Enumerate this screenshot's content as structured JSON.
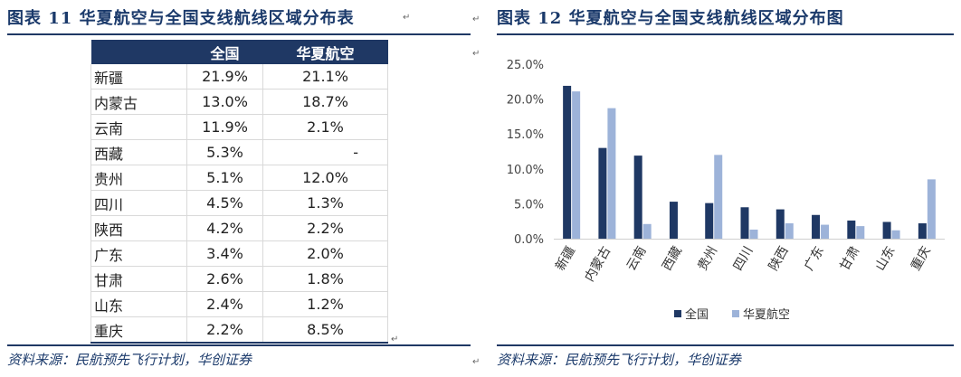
{
  "left": {
    "title": "图表 11   华夏航空与全国支线航线区域分布表",
    "source": "资料来源：民航预先飞行计划，华创证券"
  },
  "right": {
    "title": "图表 12   华夏航空与全国支线航线区域分布图",
    "source": "资料来源：民航预先飞行计划，华创证券"
  },
  "table": {
    "headers": [
      "",
      "全国",
      "华夏航空"
    ],
    "rows": [
      [
        "新疆",
        "21.9%",
        "21.1%"
      ],
      [
        "内蒙古",
        "13.0%",
        "18.7%"
      ],
      [
        "云南",
        "11.9%",
        "2.1%"
      ],
      [
        "西藏",
        "5.3%",
        "-"
      ],
      [
        "贵州",
        "5.1%",
        "12.0%"
      ],
      [
        "四川",
        "4.5%",
        "1.3%"
      ],
      [
        "陕西",
        "4.2%",
        "2.2%"
      ],
      [
        "广东",
        "3.4%",
        "2.0%"
      ],
      [
        "甘肃",
        "2.6%",
        "1.8%"
      ],
      [
        "山东",
        "2.4%",
        "1.2%"
      ],
      [
        "重庆",
        "2.2%",
        "8.5%"
      ]
    ]
  },
  "colors": {
    "national": "#1f3864",
    "huaxia": "#9db3d9",
    "accent": "#1f3864"
  },
  "chart_data": {
    "type": "bar",
    "categories": [
      "新疆",
      "内蒙古",
      "云南",
      "西藏",
      "贵州",
      "四川",
      "陕西",
      "广东",
      "甘肃",
      "山东",
      "重庆"
    ],
    "series": [
      {
        "name": "全国",
        "values": [
          21.9,
          13.0,
          11.9,
          5.3,
          5.1,
          4.5,
          4.2,
          3.4,
          2.6,
          2.4,
          2.2
        ]
      },
      {
        "name": "华夏航空",
        "values": [
          21.1,
          18.7,
          2.1,
          0,
          12.0,
          1.3,
          2.2,
          2.0,
          1.8,
          1.2,
          8.5
        ]
      }
    ],
    "yticks": [
      "0.0%",
      "5.0%",
      "10.0%",
      "15.0%",
      "20.0%",
      "25.0%"
    ],
    "ylim": [
      0,
      25
    ],
    "grid": false,
    "legend": "bottom"
  }
}
